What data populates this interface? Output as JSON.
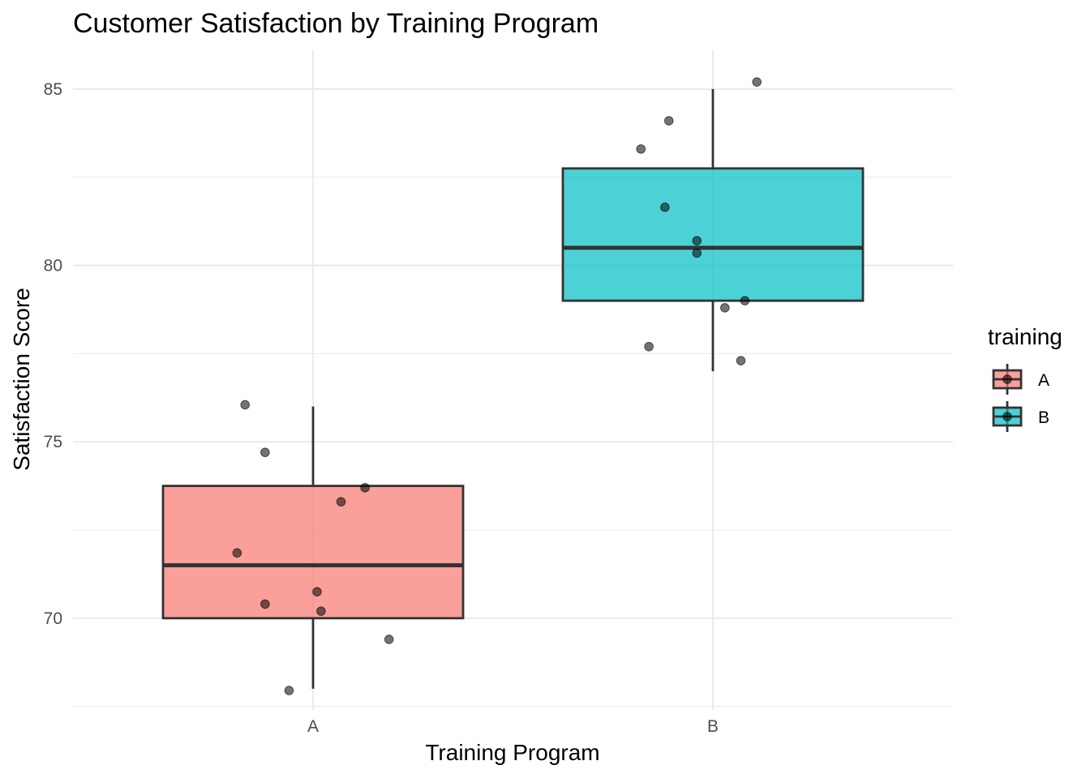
{
  "chart_data": {
    "type": "boxplot",
    "title": "Customer Satisfaction by Training Program",
    "xlabel": "Training Program",
    "ylabel": "Satisfaction Score",
    "ylim": [
      67.4,
      86.1
    ],
    "y_ticks": [
      70,
      75,
      80,
      85
    ],
    "y_minor_ticks": [
      67.5,
      72.5,
      77.5,
      82.5
    ],
    "categories": [
      "A",
      "B"
    ],
    "grid": true,
    "legend": {
      "title": "training",
      "placement": "right",
      "entries": [
        "A",
        "B"
      ]
    },
    "series": [
      {
        "name": "A",
        "color": "#f8766d",
        "box": {
          "whisker_low": 68.0,
          "q1": 70.0,
          "median": 71.5,
          "q3": 73.75,
          "whisker_high": 76.0
        },
        "points": [
          {
            "x_jitter": -0.17,
            "y": 76.05
          },
          {
            "x_jitter": -0.12,
            "y": 74.7
          },
          {
            "x_jitter": 0.13,
            "y": 73.7
          },
          {
            "x_jitter": 0.07,
            "y": 73.3
          },
          {
            "x_jitter": -0.19,
            "y": 71.85
          },
          {
            "x_jitter": 0.01,
            "y": 70.75
          },
          {
            "x_jitter": -0.12,
            "y": 70.4
          },
          {
            "x_jitter": 0.02,
            "y": 70.2
          },
          {
            "x_jitter": 0.19,
            "y": 69.4
          },
          {
            "x_jitter": -0.06,
            "y": 67.95
          }
        ]
      },
      {
        "name": "B",
        "color": "#00bfc4",
        "box": {
          "whisker_low": 77.0,
          "q1": 79.0,
          "median": 80.5,
          "q3": 82.75,
          "whisker_high": 85.0
        },
        "points": [
          {
            "x_jitter": 0.11,
            "y": 85.2
          },
          {
            "x_jitter": -0.11,
            "y": 84.1
          },
          {
            "x_jitter": -0.18,
            "y": 83.3
          },
          {
            "x_jitter": -0.12,
            "y": 81.65
          },
          {
            "x_jitter": -0.04,
            "y": 80.7
          },
          {
            "x_jitter": -0.04,
            "y": 80.35
          },
          {
            "x_jitter": 0.08,
            "y": 79.0
          },
          {
            "x_jitter": 0.03,
            "y": 78.8
          },
          {
            "x_jitter": -0.16,
            "y": 77.7
          },
          {
            "x_jitter": 0.07,
            "y": 77.3
          }
        ]
      }
    ]
  }
}
